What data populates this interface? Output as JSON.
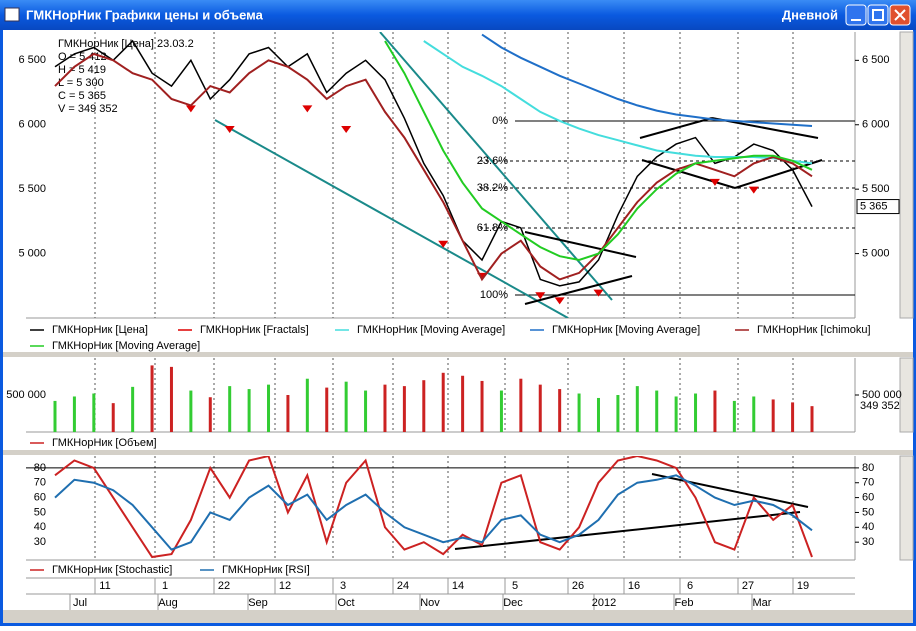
{
  "window": {
    "title": "ГМКНорНик Графики цены и объема",
    "period": "Дневной"
  },
  "info": {
    "header": "ГМКНорНик [Цена] 23.03.2",
    "lines": [
      "O = 5 412",
      "H = 5 419",
      "L = 5 300",
      "C = 5 365",
      "V = 349 352"
    ]
  },
  "chart_data": [
    {
      "type": "line",
      "ylim": [
        4500,
        6720
      ],
      "yticks": [
        {
          "value": 5000,
          "label": "5 000"
        },
        {
          "value": 5500,
          "label": "5 500"
        },
        {
          "value": 6000,
          "label": "6 000"
        },
        {
          "value": 6500,
          "label": "6 500"
        }
      ],
      "last_label": {
        "value": 5365,
        "label": "5 365"
      },
      "fib_labels": [
        "0%",
        "23.6%",
        "38.2%",
        "61.8%",
        "100%"
      ],
      "series": [
        {
          "name": "ГМКНорНик [Цена]",
          "color": "#000000",
          "values": [
            6450,
            6550,
            6600,
            6500,
            6650,
            6400,
            6300,
            6500,
            6200,
            6350,
            6550,
            6600,
            6450,
            6550,
            6250,
            6400,
            6500,
            6350,
            6050,
            5700,
            5450,
            5100,
            4950,
            5250,
            5200,
            4800,
            4750,
            4780,
            4950,
            5300,
            5600,
            5750,
            5850,
            5900,
            5700,
            5750,
            5850,
            5800,
            5650,
            5365
          ]
        },
        {
          "name": "ГМКНорНик [Fractals]",
          "color": "#dd0000",
          "style": "arrows",
          "values": [
            null,
            null,
            null,
            null,
            null,
            null,
            null,
            6150,
            null,
            5990,
            null,
            null,
            null,
            6150,
            null,
            5990,
            null,
            null,
            null,
            null,
            5100,
            null,
            4850,
            null,
            null,
            4700,
            4660,
            null,
            4720,
            null,
            null,
            null,
            null,
            null,
            5580,
            null,
            5520,
            null,
            null,
            null
          ]
        },
        {
          "name": "ГМКНорНик [Moving Average]",
          "color": "#44dddd",
          "values": [
            null,
            null,
            null,
            null,
            null,
            null,
            null,
            null,
            null,
            null,
            null,
            null,
            null,
            null,
            null,
            null,
            null,
            null,
            null,
            6650,
            6550,
            6450,
            6380,
            6300,
            6200,
            6100,
            6030,
            5970,
            5920,
            5880,
            5840,
            5800,
            5780,
            5760,
            5750,
            5750,
            5750,
            5740,
            5720,
            5700
          ]
        },
        {
          "name": "ГМКНорНик [Moving Average]",
          "color": "#1f6fc8",
          "values": [
            null,
            null,
            null,
            null,
            null,
            null,
            null,
            null,
            null,
            null,
            null,
            null,
            null,
            null,
            null,
            null,
            null,
            null,
            null,
            null,
            null,
            null,
            6700,
            6600,
            6520,
            6450,
            6380,
            6320,
            6260,
            6200,
            6150,
            6110,
            6080,
            6060,
            6040,
            6030,
            6020,
            6010,
            6000,
            5990
          ]
        },
        {
          "name": "ГМКНорНик [Ichimoku]",
          "color": "#a02020",
          "values": [
            6300,
            6450,
            6550,
            6500,
            6400,
            6350,
            6200,
            6150,
            6300,
            6250,
            6400,
            6500,
            6450,
            6350,
            6200,
            6300,
            6350,
            6100,
            5900,
            5650,
            5400,
            5100,
            4800,
            5000,
            5100,
            4900,
            4800,
            4850,
            5000,
            5200,
            5400,
            5550,
            5650,
            5700,
            5650,
            5600,
            5700,
            5750,
            5700,
            5600
          ]
        },
        {
          "name": "ГМКНорНик [Moving Average]",
          "color": "#22cc22",
          "values": [
            null,
            null,
            null,
            null,
            null,
            null,
            null,
            null,
            null,
            null,
            null,
            null,
            null,
            null,
            null,
            null,
            null,
            6650,
            6400,
            6100,
            5800,
            5550,
            5350,
            5250,
            5150,
            5050,
            4980,
            4950,
            5000,
            5150,
            5350,
            5500,
            5620,
            5700,
            5720,
            5740,
            5760,
            5760,
            5720,
            5650
          ]
        }
      ]
    },
    {
      "type": "bar",
      "ylim": [
        0,
        1000000
      ],
      "yticks": [
        {
          "value": 500000,
          "label": "500 000"
        }
      ],
      "last_label": {
        "value": 349352,
        "label": "349 352"
      },
      "up_color": "#33cc33",
      "down_color": "#cc2222",
      "series": [
        {
          "name": "ГМКНорНик [Объем]",
          "color": "#cc2222",
          "values": [
            420000,
            480000,
            520000,
            390000,
            610000,
            900000,
            880000,
            560000,
            470000,
            620000,
            580000,
            640000,
            500000,
            720000,
            600000,
            680000,
            560000,
            640000,
            620000,
            700000,
            800000,
            760000,
            690000,
            560000,
            720000,
            640000,
            580000,
            520000,
            460000,
            500000,
            620000,
            560000,
            480000,
            520000,
            560000,
            420000,
            480000,
            440000,
            400000,
            349352
          ]
        }
      ]
    },
    {
      "type": "line",
      "ylim": [
        18,
        88
      ],
      "yticks": [
        30,
        40,
        50,
        60,
        70,
        80
      ],
      "series": [
        {
          "name": "ГМКНорНик [Stochastic]",
          "color": "#cc2222",
          "values": [
            75,
            85,
            80,
            60,
            40,
            20,
            22,
            45,
            80,
            60,
            85,
            88,
            50,
            75,
            30,
            70,
            85,
            40,
            25,
            30,
            22,
            35,
            28,
            70,
            75,
            30,
            25,
            40,
            70,
            85,
            88,
            85,
            80,
            60,
            30,
            25,
            60,
            45,
            55,
            20
          ]
        },
        {
          "name": "ГМКНорНик [RSI]",
          "color": "#1f6fb0",
          "values": [
            60,
            72,
            70,
            65,
            55,
            40,
            25,
            30,
            50,
            45,
            60,
            68,
            55,
            62,
            45,
            55,
            62,
            50,
            40,
            35,
            30,
            33,
            30,
            45,
            48,
            35,
            30,
            35,
            45,
            62,
            70,
            72,
            75,
            68,
            60,
            55,
            58,
            55,
            48,
            38
          ]
        }
      ]
    }
  ],
  "x_axis": {
    "days": [
      "11",
      "1",
      "22",
      "12",
      "3",
      "24",
      "14",
      "5",
      "26",
      "16",
      "6",
      "27",
      "19"
    ],
    "months": [
      "Jul",
      "Aug",
      "Sep",
      "Oct",
      "Nov",
      "Dec",
      "2012",
      "Feb",
      "Mar"
    ]
  }
}
